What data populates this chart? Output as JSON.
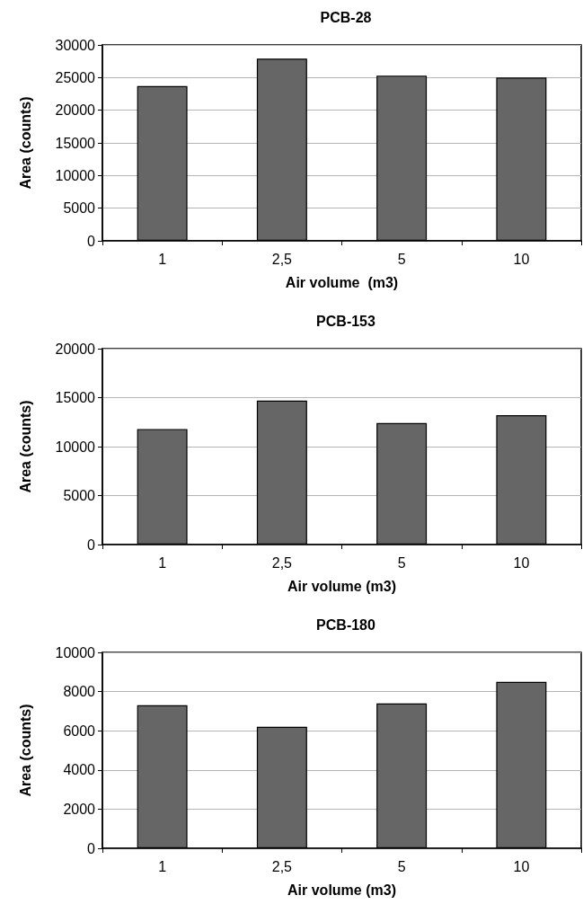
{
  "chart_data": [
    {
      "type": "bar",
      "title": "PCB-28",
      "xlabel": "Air volume  (m3)",
      "ylabel": "Area (counts)",
      "categories": [
        "1",
        "2,5",
        "5",
        "10"
      ],
      "values": [
        23700,
        27900,
        25300,
        25000
      ],
      "color": "#666666",
      "ylim": [
        0,
        30000
      ],
      "yticks": [
        0,
        5000,
        10000,
        15000,
        20000,
        25000,
        30000
      ],
      "grid": "y"
    },
    {
      "type": "bar",
      "title": "PCB-153",
      "xlabel": "Air volume (m3)",
      "ylabel": "Area (counts)",
      "categories": [
        "1",
        "2,5",
        "5",
        "10"
      ],
      "values": [
        11800,
        14700,
        12400,
        13200
      ],
      "color": "#666666",
      "ylim": [
        0,
        20000
      ],
      "yticks": [
        0,
        5000,
        10000,
        15000,
        20000
      ],
      "grid": "y"
    },
    {
      "type": "bar",
      "title": "PCB-180",
      "xlabel": "Air volume (m3)",
      "ylabel": "Area (counts)",
      "categories": [
        "1",
        "2,5",
        "5",
        "10"
      ],
      "values": [
        7300,
        6200,
        7400,
        8500
      ],
      "color": "#666666",
      "ylim": [
        0,
        10000
      ],
      "yticks": [
        0,
        2000,
        4000,
        6000,
        8000,
        10000
      ],
      "grid": "y"
    }
  ]
}
